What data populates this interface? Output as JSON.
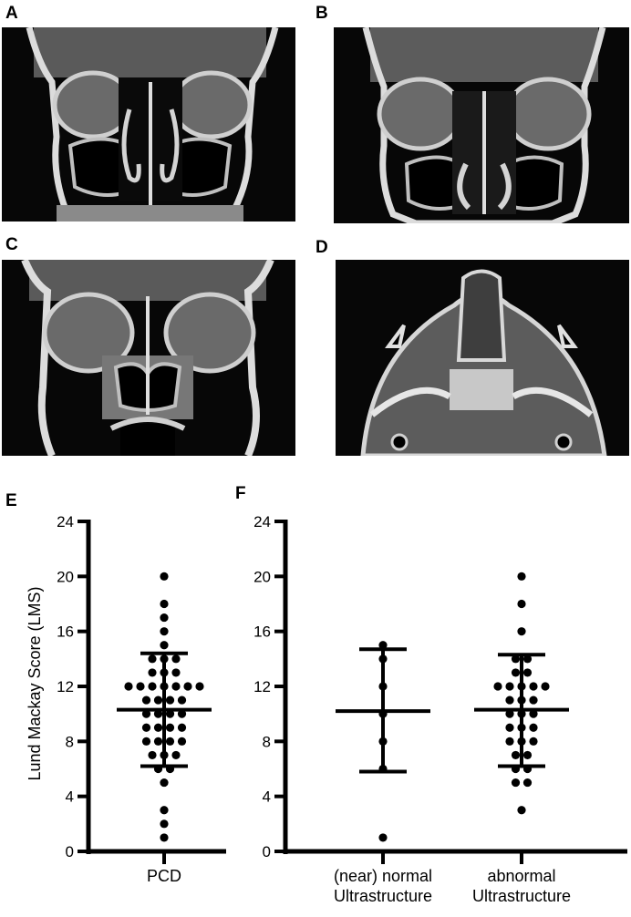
{
  "panels": {
    "a": {
      "letter": "A"
    },
    "b": {
      "letter": "B"
    },
    "c": {
      "letter": "C"
    },
    "d": {
      "letter": "D"
    },
    "e": {
      "letter": "E"
    },
    "f": {
      "letter": "F"
    }
  },
  "chart_data": [
    {
      "panel": "E",
      "type": "scatter",
      "title": "",
      "ylabel": "Lund Mackay Score (LMS)",
      "xlabel": "",
      "ylim": [
        0,
        24
      ],
      "yticks": [
        "0",
        "4",
        "8",
        "12",
        "16",
        "20",
        "24"
      ],
      "categories": [
        "PCD"
      ],
      "grid": false,
      "summary": [
        {
          "category": "PCD",
          "mean": 10.3,
          "upper": 14.4,
          "lower": 6.2
        }
      ],
      "series": [
        {
          "category": "PCD",
          "values": [
            20,
            18,
            17,
            16,
            15,
            14,
            14,
            14,
            13,
            13,
            13,
            12,
            12,
            12,
            12,
            12,
            12,
            12,
            11,
            11,
            11,
            11,
            10,
            10,
            10,
            10,
            9,
            9,
            9,
            9,
            8,
            8,
            8,
            8,
            7,
            7,
            7,
            6,
            6,
            5,
            3,
            2,
            1
          ]
        }
      ]
    },
    {
      "panel": "F",
      "type": "scatter",
      "title": "",
      "ylabel": "",
      "xlabel": "",
      "ylim": [
        0,
        24
      ],
      "yticks": [
        "0",
        "4",
        "8",
        "12",
        "16",
        "20",
        "24"
      ],
      "categories": [
        "(near) normal\nUltrastructure",
        "abnormal\nUltrastructure"
      ],
      "grid": false,
      "summary": [
        {
          "category": "(near) normal\nUltrastructure",
          "mean": 10.2,
          "upper": 14.7,
          "lower": 5.8
        },
        {
          "category": "abnormal\nUltrastructure",
          "mean": 10.3,
          "upper": 14.3,
          "lower": 6.2
        }
      ],
      "series": [
        {
          "category": "(near) normal\nUltrastructure",
          "values": [
            15,
            14,
            12,
            10,
            8,
            6,
            1
          ]
        },
        {
          "category": "abnormal\nUltrastructure",
          "values": [
            20,
            18,
            16,
            14,
            14,
            13,
            13,
            12,
            12,
            12,
            12,
            12,
            11,
            11,
            11,
            10,
            10,
            10,
            9,
            9,
            9,
            8,
            8,
            8,
            7,
            7,
            6,
            6,
            5,
            5,
            3
          ]
        }
      ]
    }
  ]
}
